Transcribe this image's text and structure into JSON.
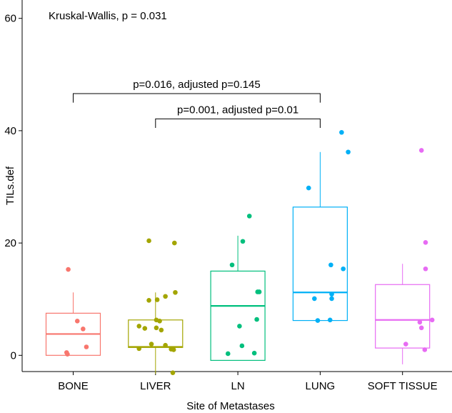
{
  "chart_data": {
    "type": "boxplot",
    "title": "",
    "xlabel": "Site of Metastases",
    "ylabel": "TILs.def",
    "ylim": [
      -3.0,
      63.0
    ],
    "yticks": [
      0,
      20,
      40,
      60
    ],
    "yticks_labels": [
      "0",
      "20",
      "40",
      "60"
    ],
    "grid": false,
    "legend": "none",
    "annotation": "Kruskal-Wallis, p = 0.031",
    "categories": [
      "BONE",
      "LIVER",
      "LN",
      "LUNG",
      "SOFT TISSUE"
    ],
    "colors": [
      "#F8766D",
      "#A3A500",
      "#00BF7D",
      "#00B0F6",
      "#E76BF3"
    ],
    "boxes": [
      {
        "name": "BONE",
        "whisker_low": 0,
        "q1": 0,
        "median": 3.8,
        "q3": 7.5,
        "whisker_high": 11.2
      },
      {
        "name": "LIVER",
        "whisker_low": -3.3,
        "q1": 1.4,
        "median": 1.5,
        "q3": 6.3,
        "whisker_high": 11.2
      },
      {
        "name": "LN",
        "whisker_low": -0.9,
        "q1": -0.9,
        "median": 8.8,
        "q3": 15.0,
        "whisker_high": 21.3
      },
      {
        "name": "LUNG",
        "whisker_low": 6.2,
        "q1": 6.2,
        "median": 11.2,
        "q3": 26.4,
        "whisker_high": 36.2
      },
      {
        "name": "SOFT TISSUE",
        "whisker_low": -1.6,
        "q1": 1.3,
        "median": 6.3,
        "q3": 12.6,
        "whisker_high": 16.3
      }
    ],
    "points": [
      [
        [
          -0.06,
          15.3
        ],
        [
          0.05,
          6.1
        ],
        [
          0.12,
          4.7
        ],
        [
          0.16,
          1.5
        ],
        [
          -0.07,
          0.2
        ],
        [
          -0.08,
          0.5
        ]
      ],
      [
        [
          -0.08,
          20.4
        ],
        [
          0.23,
          20.0
        ],
        [
          0.24,
          11.2
        ],
        [
          0.12,
          10.5
        ],
        [
          0.02,
          9.9
        ],
        [
          -0.08,
          9.8
        ],
        [
          0.01,
          6.3
        ],
        [
          0.05,
          6.1
        ],
        [
          -0.2,
          5.2
        ],
        [
          -0.13,
          4.8
        ],
        [
          0.01,
          4.9
        ],
        [
          0.07,
          4.5
        ],
        [
          -0.05,
          2.0
        ],
        [
          0.12,
          1.8
        ],
        [
          0.19,
          1.1
        ],
        [
          -0.2,
          1.2
        ],
        [
          0.22,
          1.0
        ],
        [
          0.21,
          -3.1
        ]
      ],
      [
        [
          0.14,
          24.8
        ],
        [
          0.06,
          20.3
        ],
        [
          -0.07,
          16.1
        ],
        [
          0.26,
          11.3
        ],
        [
          0.24,
          11.3
        ],
        [
          0.23,
          6.4
        ],
        [
          0.02,
          5.2
        ],
        [
          0.05,
          1.7
        ],
        [
          0.2,
          0.4
        ],
        [
          -0.12,
          0.3
        ]
      ],
      [
        [
          0.26,
          39.7
        ],
        [
          0.34,
          36.2
        ],
        [
          -0.14,
          29.8
        ],
        [
          0.13,
          16.1
        ],
        [
          0.28,
          15.4
        ],
        [
          -0.07,
          10.1
        ],
        [
          0.14,
          10.9
        ],
        [
          0.14,
          10.1
        ],
        [
          -0.03,
          6.2
        ],
        [
          0.12,
          6.3
        ]
      ],
      [
        [
          0.23,
          36.5
        ],
        [
          0.28,
          20.1
        ],
        [
          0.28,
          15.4
        ],
        [
          0.36,
          6.3
        ],
        [
          0.21,
          5.9
        ],
        [
          0.23,
          4.9
        ],
        [
          0.04,
          2.0
        ],
        [
          0.27,
          1.0
        ]
      ]
    ],
    "comparisons": [
      {
        "from": "BONE",
        "to": "LUNG",
        "y": 46.6,
        "drop": 1.6,
        "label": "p=0.016, adjusted p=0.145"
      },
      {
        "from": "LIVER",
        "to": "LUNG",
        "y": 42.1,
        "drop": 1.6,
        "label": "p=0.001, adjusted p=0.01"
      }
    ]
  }
}
